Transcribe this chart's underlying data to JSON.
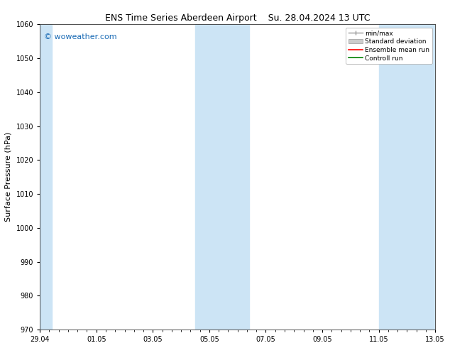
{
  "title_left": "ENS Time Series Aberdeen Airport",
  "title_right": "Su. 28.04.2024 13 UTC",
  "ylabel": "Surface Pressure (hPa)",
  "ylim": [
    970,
    1060
  ],
  "yticks": [
    970,
    980,
    990,
    1000,
    1010,
    1020,
    1030,
    1040,
    1050,
    1060
  ],
  "xlim": [
    0,
    14
  ],
  "x_tick_labels": [
    "29.04",
    "01.05",
    "03.05",
    "05.05",
    "07.05",
    "09.05",
    "11.05",
    "13.05"
  ],
  "x_tick_positions": [
    0,
    2,
    4,
    6,
    8,
    10,
    12,
    14
  ],
  "shaded_bands": [
    {
      "start": 0,
      "end": 0.42
    },
    {
      "start": 5.5,
      "end": 7.42
    },
    {
      "start": 12.0,
      "end": 14.0
    }
  ],
  "shaded_color": "#cce4f5",
  "bg_color": "#ffffff",
  "plot_bg_color": "#ffffff",
  "watermark_text": "© woweather.com",
  "watermark_color": "#1a6bb5",
  "legend_labels": [
    "min/max",
    "Standard deviation",
    "Ensemble mean run",
    "Controll run"
  ],
  "legend_colors": [
    "#999999",
    "#cccccc",
    "#ff0000",
    "#008000"
  ],
  "legend_styles": [
    "minmax",
    "filled",
    "line",
    "line"
  ],
  "title_fontsize": 9,
  "tick_fontsize": 7,
  "label_fontsize": 8,
  "legend_fontsize": 6.5,
  "watermark_fontsize": 8
}
